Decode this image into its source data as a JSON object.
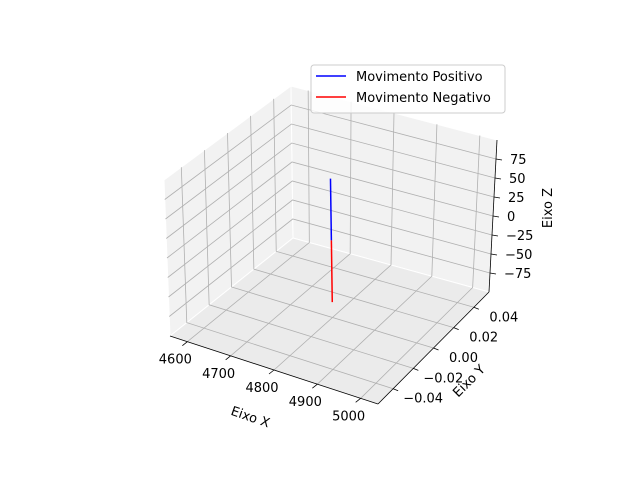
{
  "chart_data": {
    "type": "line",
    "projection": "3d",
    "title": "",
    "xlabel": "Eixo X",
    "ylabel": "Eixo Y",
    "zlabel": "Eixo Z",
    "xlim": [
      4560,
      5040
    ],
    "ylim": [
      -0.055,
      0.055
    ],
    "zlim": [
      -100,
      100
    ],
    "x_ticks": [
      "4600",
      "4700",
      "4800",
      "4900",
      "5000"
    ],
    "y_ticks": [
      "−0.04",
      "−0.02",
      "0.00",
      "0.02",
      "0.04"
    ],
    "z_ticks": [
      "75",
      "50",
      "25",
      "0",
      "−25",
      "−50",
      "−75"
    ],
    "grid": true,
    "legend_position": "upper-right",
    "series": [
      {
        "name": "Movimento Positivo",
        "color": "#0000ff",
        "x": [
          4800,
          4800
        ],
        "y": [
          0,
          0
        ],
        "z": [
          0,
          80
        ]
      },
      {
        "name": "Movimento Negativo",
        "color": "#ff0000",
        "x": [
          4800,
          4800
        ],
        "y": [
          0,
          0
        ],
        "z": [
          -80,
          0
        ]
      }
    ]
  }
}
